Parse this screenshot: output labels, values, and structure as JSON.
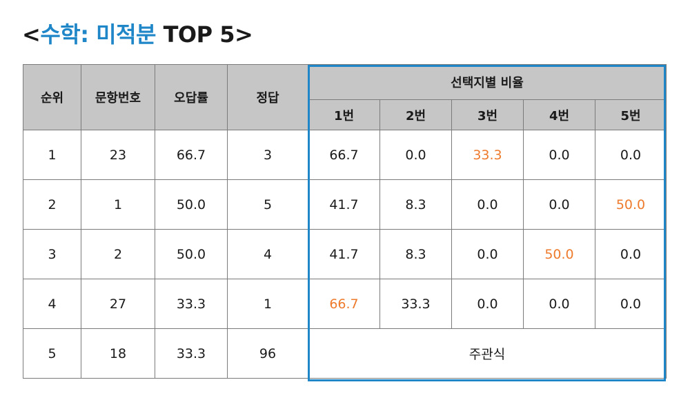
{
  "title": {
    "prefix": "<",
    "accent": "수학: 미적분",
    "suffix": " TOP 5>"
  },
  "table": {
    "headers": {
      "rank": "순위",
      "question_no": "문항번호",
      "error_rate": "오답률",
      "answer": "정답",
      "choice_ratio": "선택지별 비율",
      "choices": [
        "1번",
        "2번",
        "3번",
        "4번",
        "5번"
      ]
    },
    "rows": [
      {
        "rank": "1",
        "question_no": "23",
        "error_rate": "66.7",
        "answer": "3",
        "choices": [
          "66.7",
          "0.0",
          "33.3",
          "0.0",
          "0.0"
        ],
        "highlight": [
          2
        ]
      },
      {
        "rank": "2",
        "question_no": "1",
        "error_rate": "50.0",
        "answer": "5",
        "choices": [
          "41.7",
          "8.3",
          "0.0",
          "0.0",
          "50.0"
        ],
        "highlight": [
          4
        ]
      },
      {
        "rank": "3",
        "question_no": "2",
        "error_rate": "50.0",
        "answer": "4",
        "choices": [
          "41.7",
          "8.3",
          "0.0",
          "50.0",
          "0.0"
        ],
        "highlight": [
          3
        ]
      },
      {
        "rank": "4",
        "question_no": "27",
        "error_rate": "33.3",
        "answer": "1",
        "choices": [
          "66.7",
          "33.3",
          "0.0",
          "0.0",
          "0.0"
        ],
        "highlight": [
          0
        ]
      },
      {
        "rank": "5",
        "question_no": "18",
        "error_rate": "33.3",
        "answer": "96",
        "subjective": "주관식"
      }
    ]
  },
  "colors": {
    "accent": "#1f86c8",
    "highlight": "#ee7a2c",
    "header_bg": "#c6c6c6"
  }
}
